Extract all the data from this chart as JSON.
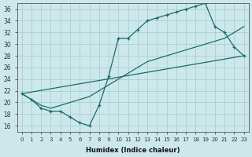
{
  "xlabel": "Humidex (Indice chaleur)",
  "bg_color": "#cde8ea",
  "grid_color": "#aacfd2",
  "line_color": "#1a6b6b",
  "xlim": [
    -0.5,
    23.5
  ],
  "ylim": [
    15.0,
    37.0
  ],
  "yticks": [
    16,
    18,
    20,
    22,
    24,
    26,
    28,
    30,
    32,
    34,
    36
  ],
  "xticks": [
    0,
    1,
    2,
    3,
    4,
    5,
    6,
    7,
    8,
    9,
    10,
    11,
    12,
    13,
    14,
    15,
    16,
    17,
    18,
    19,
    20,
    21,
    22,
    23
  ],
  "zigzag_x": [
    0,
    1,
    2,
    3,
    4,
    5,
    6,
    7,
    8,
    9,
    10,
    11,
    12,
    13,
    14,
    15,
    16,
    17,
    18,
    19,
    20,
    21,
    22,
    23
  ],
  "zigzag_y": [
    21.5,
    20.5,
    19.0,
    18.5,
    18.5,
    17.5,
    16.5,
    16.0,
    19.5,
    24.5,
    31.0,
    31.0,
    32.5,
    34.0,
    34.5,
    35.0,
    35.5,
    36.0,
    36.5,
    37.0,
    33.0,
    32.0,
    29.5,
    28.0
  ],
  "line2_x": [
    0,
    1,
    2,
    3,
    4,
    5,
    6,
    7,
    8,
    9,
    10,
    11,
    12,
    13,
    14,
    15,
    16,
    17,
    18,
    19,
    20,
    21,
    22,
    23
  ],
  "line2_y": [
    21.5,
    20.5,
    19.5,
    19.0,
    19.5,
    20.0,
    20.5,
    21.0,
    22.0,
    23.0,
    24.0,
    25.0,
    26.0,
    27.0,
    27.5,
    28.0,
    28.5,
    29.0,
    29.5,
    30.0,
    30.5,
    31.0,
    32.0,
    33.0
  ],
  "line3_x": [
    0,
    23
  ],
  "line3_y": [
    21.5,
    28.0
  ]
}
